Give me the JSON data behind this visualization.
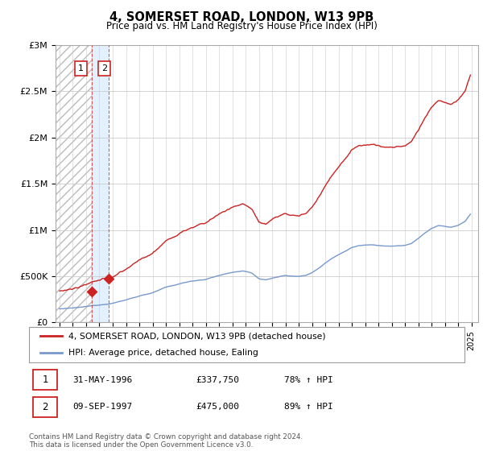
{
  "title": "4, SOMERSET ROAD, LONDON, W13 9PB",
  "subtitle": "Price paid vs. HM Land Registry's House Price Index (HPI)",
  "ylabel_ticks": [
    "£0",
    "£500K",
    "£1M",
    "£1.5M",
    "£2M",
    "£2.5M",
    "£3M"
  ],
  "ytick_values": [
    0,
    500000,
    1000000,
    1500000,
    2000000,
    2500000,
    3000000
  ],
  "ylim": [
    0,
    3000000
  ],
  "xlim_start": 1993.7,
  "xlim_end": 2025.5,
  "sale1_year": 1996.42,
  "sale1_price": 337750,
  "sale2_year": 1997.69,
  "sale2_price": 475000,
  "red_color": "#cc2222",
  "blue_color": "#7799cc",
  "hatch_color": "#dddddd",
  "sale_band_color": "#ddeeff",
  "legend_label_red": "4, SOMERSET ROAD, LONDON, W13 9PB (detached house)",
  "legend_label_blue": "HPI: Average price, detached house, Ealing",
  "table_row1": [
    "1",
    "31-MAY-1996",
    "£337,750",
    "78% ↑ HPI"
  ],
  "table_row2": [
    "2",
    "09-SEP-1997",
    "£475,000",
    "89% ↑ HPI"
  ],
  "footnote": "Contains HM Land Registry data © Crown copyright and database right 2024.\nThis data is licensed under the Open Government Licence v3.0."
}
